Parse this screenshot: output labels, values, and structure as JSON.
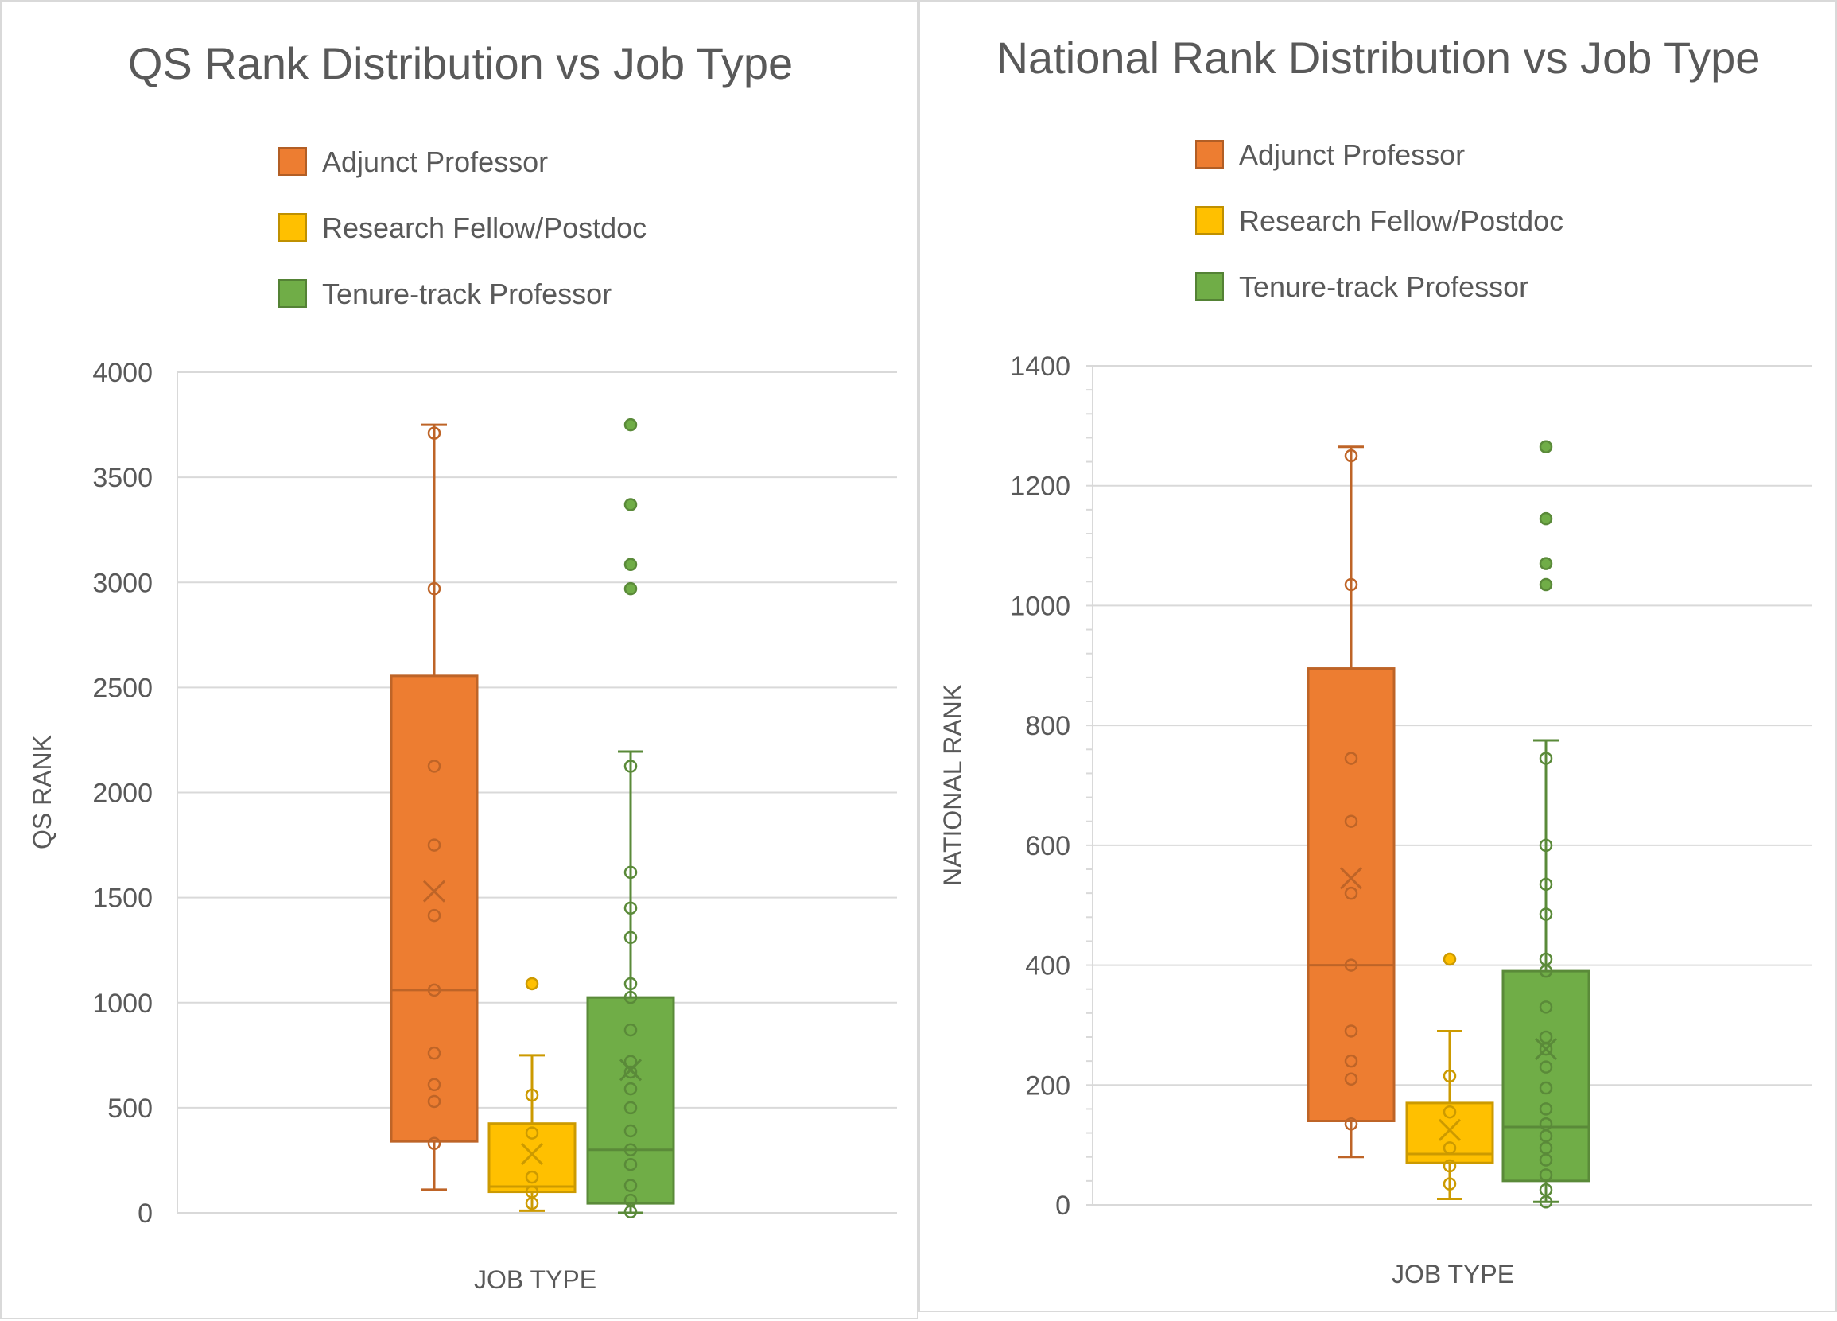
{
  "chart_data": [
    {
      "type": "box",
      "title": "QS Rank Distribution vs Job Type",
      "xlabel": "JOB TYPE",
      "ylabel": "QS RANK",
      "ylim": [
        0,
        4000
      ],
      "yticks": [
        0,
        500,
        1000,
        1500,
        2000,
        2500,
        3000,
        3500,
        4000
      ],
      "grid": true,
      "legend_position": "top",
      "series": [
        {
          "name": "Adjunct Professor",
          "color": "#ED7D31",
          "min": 110,
          "q1": 340,
          "median": 1060,
          "q3": 2555,
          "max": 3750,
          "mean": 1530,
          "points": [
            330,
            530,
            610,
            760,
            1060,
            1415,
            1750,
            2125,
            2970,
            3710
          ],
          "outliers": []
        },
        {
          "name": "Research Fellow/Postdoc",
          "color": "#FFC000",
          "min": 10,
          "q1": 100,
          "median": 125,
          "q3": 425,
          "max": 750,
          "mean": 280,
          "points": [
            45,
            100,
            170,
            380,
            560
          ],
          "outliers": [
            1090
          ]
        },
        {
          "name": "Tenure-track Professor",
          "color": "#70AD47",
          "min": 0,
          "q1": 45,
          "median": 300,
          "q3": 1025,
          "max": 2195,
          "mean": 680,
          "points": [
            5,
            60,
            130,
            230,
            300,
            390,
            500,
            590,
            670,
            720,
            870,
            1025,
            1090,
            1310,
            1450,
            1620,
            2125
          ],
          "outliers": [
            2970,
            3085,
            3370,
            3750
          ]
        }
      ]
    },
    {
      "type": "box",
      "title": "National Rank Distribution vs Job Type",
      "xlabel": "JOB TYPE",
      "ylabel": "NATIONAL RANK",
      "ylim": [
        0,
        1400
      ],
      "yticks": [
        0,
        200,
        400,
        600,
        800,
        1000,
        1200,
        1400
      ],
      "grid": true,
      "legend_position": "top",
      "series": [
        {
          "name": "Adjunct Professor",
          "color": "#ED7D31",
          "min": 80,
          "q1": 140,
          "median": 400,
          "q3": 895,
          "max": 1265,
          "mean": 545,
          "points": [
            135,
            210,
            240,
            290,
            400,
            520,
            640,
            745,
            1035,
            1250
          ],
          "outliers": []
        },
        {
          "name": "Research Fellow/Postdoc",
          "color": "#FFC000",
          "min": 10,
          "q1": 70,
          "median": 85,
          "q3": 170,
          "max": 290,
          "mean": 125,
          "points": [
            35,
            65,
            95,
            155,
            215
          ],
          "outliers": [
            410
          ]
        },
        {
          "name": "Tenure-track Professor",
          "color": "#70AD47",
          "min": 5,
          "q1": 40,
          "median": 130,
          "q3": 390,
          "max": 775,
          "mean": 260,
          "points": [
            5,
            25,
            50,
            75,
            95,
            115,
            135,
            160,
            195,
            230,
            260,
            280,
            330,
            390,
            410,
            485,
            535,
            600,
            745
          ],
          "outliers": [
            1035,
            1070,
            1145,
            1265
          ]
        }
      ]
    }
  ]
}
